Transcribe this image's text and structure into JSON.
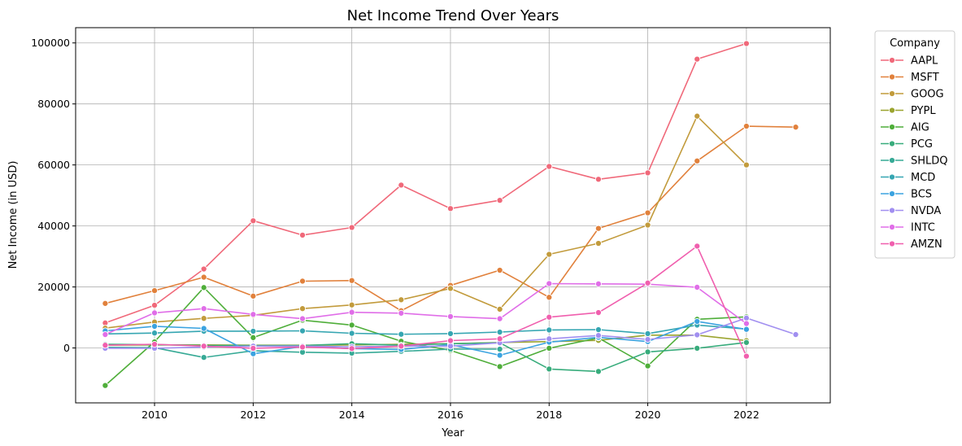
{
  "chart_data": {
    "type": "line",
    "title": "Net Income Trend Over Years",
    "xlabel": "Year",
    "ylabel": "Net Income (in USD)",
    "xlim": [
      2008.4,
      2023.7
    ],
    "ylim": [
      -18000,
      105000
    ],
    "xticks": [
      2010,
      2012,
      2014,
      2016,
      2018,
      2020,
      2022
    ],
    "yticks": [
      0,
      20000,
      40000,
      60000,
      80000,
      100000
    ],
    "grid": true,
    "legend": {
      "title": "Company",
      "placement": "outside-right"
    },
    "series": [
      {
        "name": "AAPL",
        "color": "#f0697a",
        "x": [
          2009,
          2010,
          2011,
          2012,
          2013,
          2014,
          2015,
          2016,
          2017,
          2018,
          2019,
          2020,
          2021,
          2022
        ],
        "y": [
          8200,
          14000,
          25900,
          41700,
          37000,
          39500,
          53400,
          45700,
          48400,
          59500,
          55300,
          57400,
          94700,
          99800
        ]
      },
      {
        "name": "MSFT",
        "color": "#e1813c",
        "x": [
          2009,
          2010,
          2011,
          2012,
          2013,
          2014,
          2015,
          2016,
          2017,
          2018,
          2019,
          2020,
          2021,
          2022,
          2023
        ],
        "y": [
          14600,
          18800,
          23200,
          17000,
          21900,
          22100,
          12200,
          20500,
          25500,
          16600,
          39200,
          44300,
          61300,
          72700,
          72400
        ]
      },
      {
        "name": "GOOG",
        "color": "#c29b3c",
        "x": [
          2009,
          2010,
          2011,
          2012,
          2013,
          2014,
          2015,
          2016,
          2017,
          2018,
          2019,
          2020,
          2021,
          2022
        ],
        "y": [
          6500,
          8500,
          9700,
          10700,
          12900,
          14100,
          15800,
          19500,
          12700,
          30700,
          34300,
          40300,
          76000,
          60000
        ]
      },
      {
        "name": "PYPL",
        "color": "#9ba42f",
        "x": [
          2009,
          2010,
          2011,
          2012,
          2013,
          2014,
          2015,
          2016,
          2017,
          2018,
          2019,
          2020,
          2021,
          2022
        ],
        "y": [
          900,
          1000,
          1000,
          900,
          900,
          1000,
          1200,
          1400,
          1800,
          2100,
          2500,
          4200,
          4200,
          2400
        ]
      },
      {
        "name": "AIG",
        "color": "#4fae3a",
        "x": [
          2009,
          2010,
          2011,
          2012,
          2013,
          2014,
          2015,
          2016,
          2017,
          2018,
          2019,
          2020,
          2021,
          2022
        ],
        "y": [
          -12300,
          2000,
          19800,
          3400,
          9100,
          7500,
          2200,
          -800,
          -6100,
          -100,
          3300,
          -5900,
          9400,
          10200
        ]
      },
      {
        "name": "PCG",
        "color": "#38ac7c",
        "x": [
          2009,
          2010,
          2011,
          2012,
          2013,
          2014,
          2015,
          2016,
          2017,
          2018,
          2019,
          2020,
          2021,
          2022
        ],
        "y": [
          1200,
          1100,
          800,
          800,
          800,
          1400,
          900,
          1400,
          1700,
          -6900,
          -7700,
          -1300,
          -100,
          1800
        ]
      },
      {
        "name": "SHLDQ",
        "color": "#37aa96",
        "x": [
          2009,
          2010,
          2011,
          2012,
          2013,
          2014,
          2015,
          2016,
          2017
        ],
        "y": [
          200,
          100,
          -3100,
          -900,
          -1400,
          -1700,
          -1100,
          -400,
          -400
        ]
      },
      {
        "name": "MCD",
        "color": "#36a6b2",
        "x": [
          2009,
          2010,
          2011,
          2012,
          2013,
          2014,
          2015,
          2016,
          2017,
          2018,
          2019,
          2020,
          2021,
          2022
        ],
        "y": [
          4600,
          4900,
          5500,
          5500,
          5600,
          4800,
          4500,
          4700,
          5200,
          5900,
          6000,
          4700,
          7500,
          6200
        ]
      },
      {
        "name": "BCS",
        "color": "#3ba3e0",
        "x": [
          2009,
          2010,
          2011,
          2012,
          2013,
          2014,
          2015,
          2016,
          2017,
          2018,
          2019,
          2020,
          2021,
          2022
        ],
        "y": [
          5600,
          7100,
          6400,
          -1900,
          500,
          -200,
          -500,
          1100,
          -2400,
          1900,
          3500,
          2100,
          8700,
          6100
        ]
      },
      {
        "name": "NVDA",
        "color": "#a18ff0",
        "x": [
          2009,
          2010,
          2011,
          2012,
          2013,
          2014,
          2015,
          2016,
          2017,
          2018,
          2019,
          2020,
          2021,
          2022,
          2023
        ],
        "y": [
          -100,
          -100,
          300,
          600,
          600,
          400,
          600,
          600,
          1700,
          3000,
          4100,
          2800,
          4300,
          9800,
          4400
        ]
      },
      {
        "name": "INTC",
        "color": "#e06ee8",
        "x": [
          2009,
          2010,
          2011,
          2012,
          2013,
          2014,
          2015,
          2016,
          2017,
          2018,
          2019,
          2020,
          2021,
          2022
        ],
        "y": [
          4400,
          11500,
          12900,
          11000,
          9600,
          11700,
          11400,
          10300,
          9600,
          21100,
          21000,
          20900,
          19900,
          8000
        ]
      },
      {
        "name": "AMZN",
        "color": "#f05fae",
        "x": [
          2009,
          2010,
          2011,
          2012,
          2013,
          2014,
          2015,
          2016,
          2017,
          2018,
          2019,
          2020,
          2021,
          2022
        ],
        "y": [
          900,
          1200,
          600,
          -100,
          300,
          -200,
          600,
          2400,
          3000,
          10100,
          11600,
          21300,
          33400,
          -2700
        ]
      }
    ]
  }
}
